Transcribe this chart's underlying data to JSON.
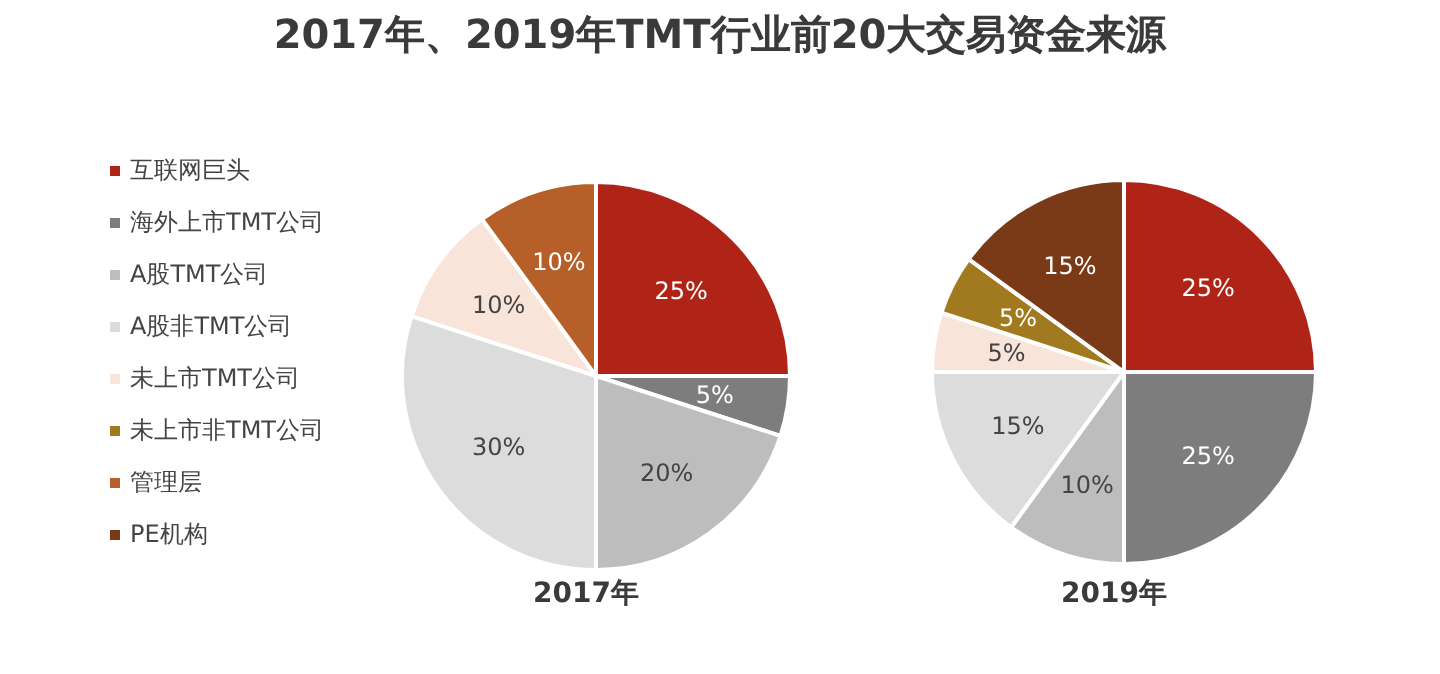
{
  "chart_data": {
    "type": "pie",
    "title": "2017年、2019年TMT行业前20大交易资金来源",
    "legend": "left",
    "categories": [
      "互联网巨头",
      "海外上市TMT公司",
      "A股TMT公司",
      "A股非TMT公司",
      "未上市TMT公司",
      "未上市非TMT公司",
      "管理层",
      "PE机构"
    ],
    "colors": [
      "#b02418",
      "#7d7d7d",
      "#bdbdbd",
      "#dcdcdc",
      "#f8e4d8",
      "#a17a1f",
      "#b65f28",
      "#7b3a17"
    ],
    "series": [
      {
        "name": "2017年",
        "values": [
          25,
          5,
          20,
          30,
          10,
          0,
          10,
          0
        ],
        "value_labels": [
          "25%",
          "5%",
          "20%",
          "30%",
          "10%",
          null,
          "10%",
          null
        ]
      },
      {
        "name": "2019年",
        "values": [
          25,
          25,
          10,
          15,
          5,
          5,
          0,
          15
        ],
        "value_labels": [
          "25%",
          "25%",
          "10%",
          "15%",
          "5%",
          "5%",
          null,
          "15%"
        ]
      }
    ]
  }
}
